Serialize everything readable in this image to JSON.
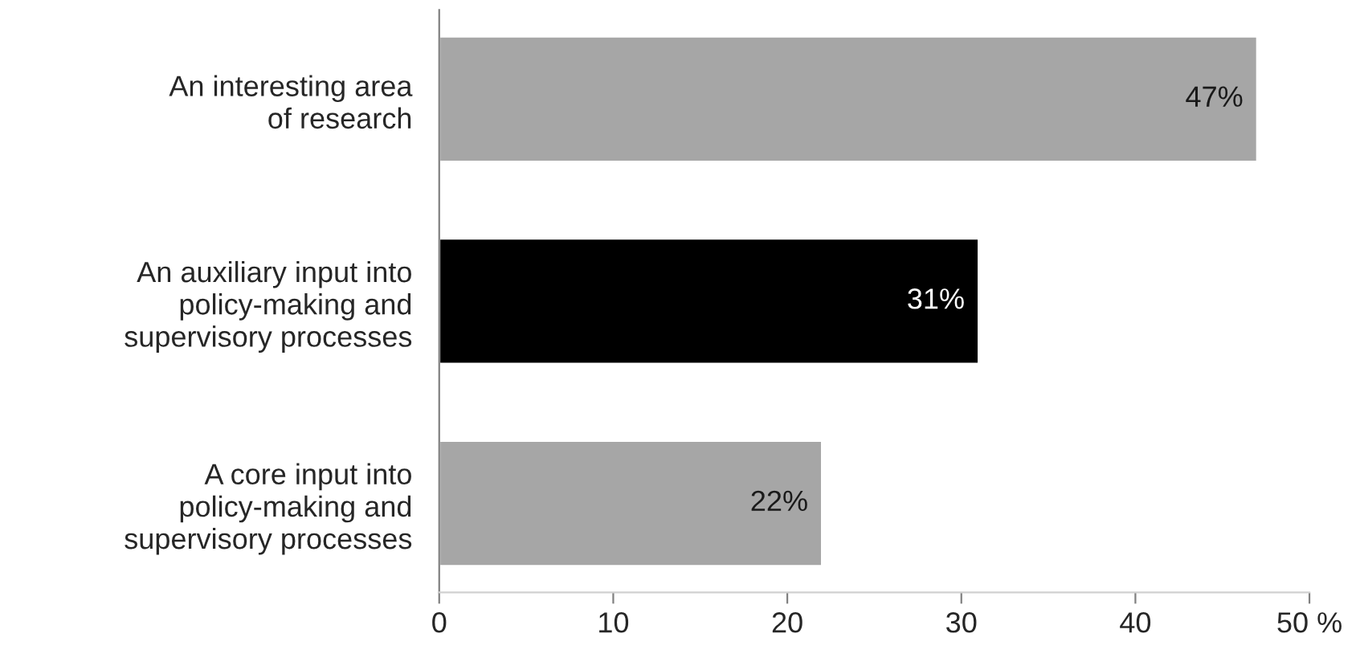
{
  "chart_data": {
    "type": "bar",
    "orientation": "horizontal",
    "categories": [
      "An interesting area\nof research",
      "An auxiliary input into\npolicy-making and\nsupervisory processes",
      "A core input into\npolicy-making and\nsupervisory processes"
    ],
    "values": [
      47,
      31,
      22
    ],
    "colors": [
      "#a6a6a6",
      "#000000",
      "#a6a6a6"
    ],
    "value_labels": [
      "47%",
      "31%",
      "22%"
    ],
    "xlim": [
      0,
      50
    ],
    "xticks": [
      0,
      10,
      20,
      30,
      40,
      {
        "value": 50,
        "label": "50 %"
      }
    ],
    "grid": false,
    "legend": false
  }
}
